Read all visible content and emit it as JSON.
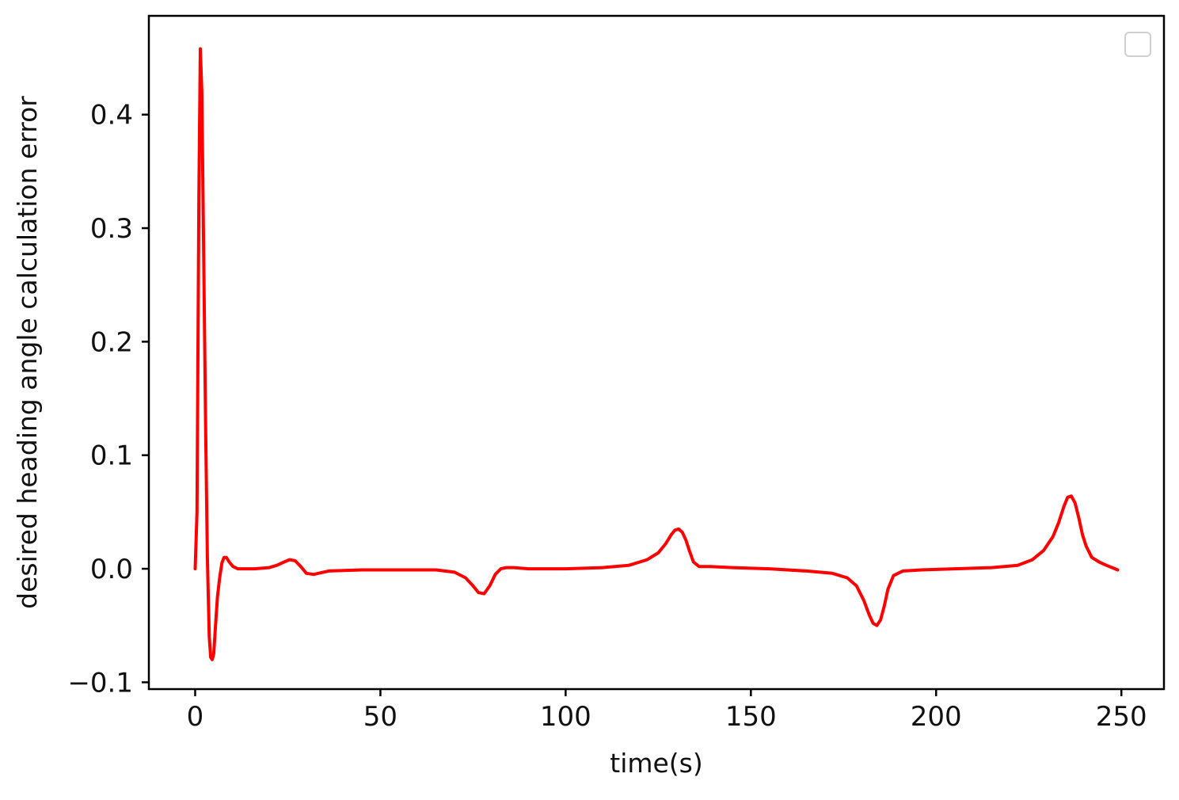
{
  "chart_data": {
    "type": "line",
    "title": "",
    "xlabel": "time(s)",
    "ylabel": "desired heading angle calculation error",
    "xlim": [
      -12.5,
      261.5
    ],
    "ylim": [
      -0.106,
      0.487
    ],
    "xticks": [
      0,
      50,
      100,
      150,
      200,
      250
    ],
    "xtick_labels": [
      "0",
      "50",
      "100",
      "150",
      "200",
      "250"
    ],
    "yticks": [
      -0.1,
      0.0,
      0.1,
      0.2,
      0.3,
      0.4
    ],
    "ytick_labels": [
      "−0.1",
      "0.0",
      "0.1",
      "0.2",
      "0.3",
      "0.4"
    ],
    "grid": false,
    "legend": {
      "position": "top-right",
      "entries": []
    },
    "series": [
      {
        "color": "#ff0000",
        "x": [
          0,
          0.5,
          1.0,
          1.4,
          1.8,
          2.3,
          2.8,
          3.3,
          3.8,
          4.2,
          4.6,
          5.0,
          5.5,
          6.0,
          6.6,
          7.2,
          7.8,
          8.4,
          9.2,
          10.2,
          11.5,
          13,
          16,
          20,
          22,
          24,
          25.5,
          27,
          28.5,
          30,
          32,
          36,
          45,
          55,
          65,
          70,
          73,
          75,
          76.5,
          78,
          79.5,
          81,
          82.5,
          84,
          86,
          90,
          100,
          110,
          117,
          122,
          125,
          127,
          128.5,
          129.5,
          130.5,
          131.5,
          132.5,
          133.5,
          134.5,
          136,
          139,
          145,
          155,
          165,
          172,
          176,
          178.5,
          180.5,
          182,
          183,
          184,
          185,
          186,
          187,
          188.5,
          191,
          196,
          205,
          215,
          222,
          226,
          229,
          231.5,
          233,
          234.5,
          235.5,
          236.5,
          237.5,
          238.5,
          239.5,
          240.5,
          242,
          244,
          246,
          247.5,
          249
        ],
        "y": [
          0.0,
          0.05,
          0.33,
          0.458,
          0.42,
          0.28,
          0.13,
          0.01,
          -0.06,
          -0.078,
          -0.08,
          -0.075,
          -0.05,
          -0.025,
          -0.008,
          0.005,
          0.01,
          0.01,
          0.006,
          0.002,
          0.0,
          0.0,
          0.0,
          0.001,
          0.003,
          0.006,
          0.008,
          0.007,
          0.002,
          -0.004,
          -0.005,
          -0.002,
          -0.001,
          -0.001,
          -0.001,
          -0.003,
          -0.008,
          -0.015,
          -0.021,
          -0.022,
          -0.015,
          -0.005,
          0.0,
          0.001,
          0.001,
          0.0,
          0.0,
          0.001,
          0.003,
          0.008,
          0.014,
          0.022,
          0.03,
          0.034,
          0.035,
          0.032,
          0.025,
          0.015,
          0.006,
          0.002,
          0.002,
          0.001,
          0.0,
          -0.002,
          -0.004,
          -0.008,
          -0.015,
          -0.028,
          -0.041,
          -0.048,
          -0.05,
          -0.045,
          -0.033,
          -0.018,
          -0.006,
          -0.002,
          -0.001,
          0.0,
          0.001,
          0.003,
          0.008,
          0.016,
          0.028,
          0.04,
          0.055,
          0.063,
          0.064,
          0.058,
          0.045,
          0.03,
          0.02,
          0.01,
          0.006,
          0.003,
          0.001,
          -0.001
        ]
      }
    ]
  }
}
